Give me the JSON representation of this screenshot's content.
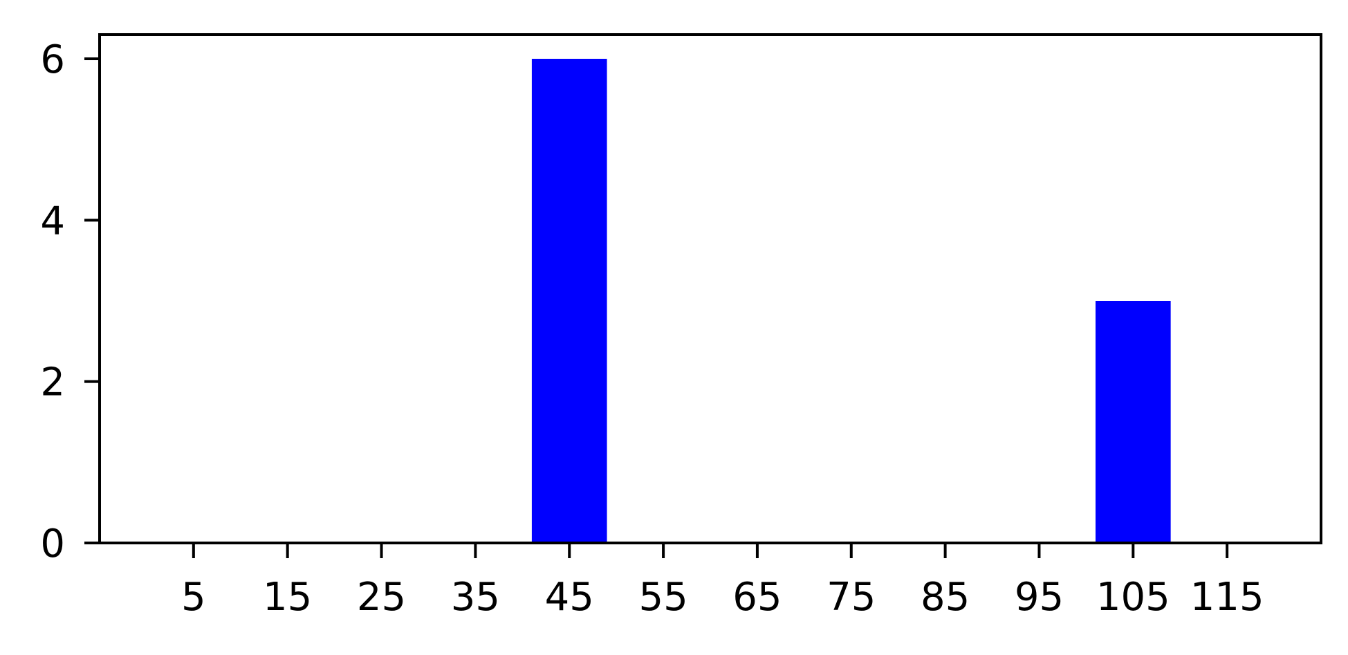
{
  "chart_data": {
    "type": "bar",
    "title": "",
    "xlabel": "",
    "ylabel": "",
    "categories": [
      "5",
      "15",
      "25",
      "35",
      "45",
      "55",
      "65",
      "75",
      "85",
      "95",
      "105",
      "115"
    ],
    "values": [
      0,
      0,
      0,
      0,
      6,
      0,
      0,
      0,
      0,
      0,
      3,
      0
    ],
    "bar_width": 8,
    "xlim": [
      -5,
      125
    ],
    "ylim": [
      0,
      6.3
    ],
    "yticks": [
      0,
      2,
      4,
      6
    ],
    "grid": false,
    "legend": false,
    "colors": {
      "bar": "#0000ff",
      "axis": "#000000"
    }
  }
}
